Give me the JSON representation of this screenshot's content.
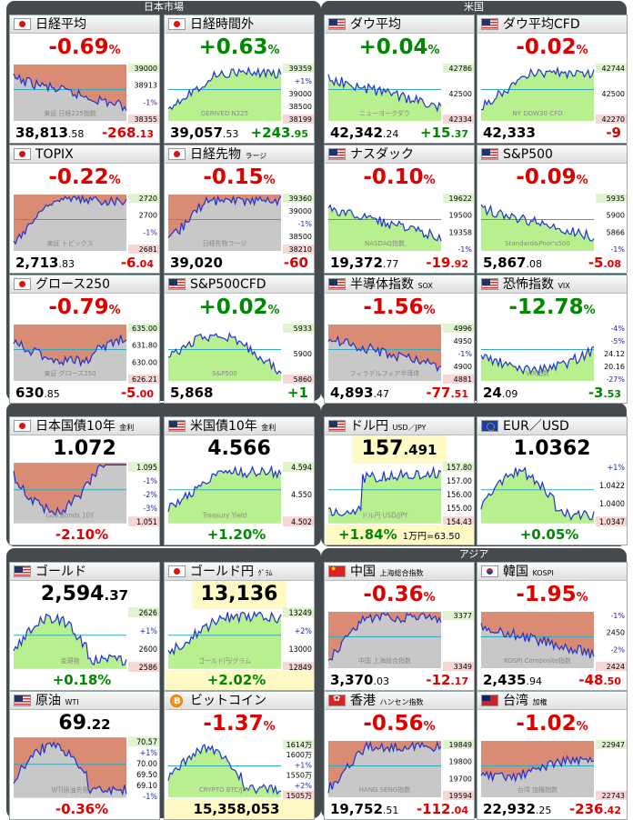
{
  "panels": [
    {
      "id": "jp",
      "title": "日本市場"
    },
    {
      "id": "us",
      "title": "米国"
    },
    {
      "id": "bond",
      "title": ""
    },
    {
      "id": "cmd",
      "title": ""
    },
    {
      "id": "fx",
      "title": ""
    },
    {
      "id": "asia",
      "title": "アジア"
    }
  ],
  "cards": [
    {
      "name": "日経平均",
      "sub": "",
      "flag": "jp",
      "chg": "-0.69",
      "unit": "%",
      "dir": "dn",
      "val": "38,813",
      "frac": ".58",
      "diff": "-268",
      "dfrac": ".13",
      "chart": "down",
      "fill": "red",
      "labels": [
        "39000",
        "38913",
        "-1%",
        "38355"
      ],
      "wm": "東証 日経225指数"
    },
    {
      "name": "日経時間外",
      "sub": "",
      "flag": "jp",
      "chg": "+0.63",
      "unit": "%",
      "dir": "up",
      "val": "39,057",
      "frac": ".53",
      "diff": "+243",
      "dfrac": ".95",
      "chart": "upflat",
      "fill": "green",
      "labels": [
        "39359",
        "+1%",
        "39000",
        "38500",
        "38199"
      ],
      "wm": "DERIVED N225"
    },
    {
      "name": "TOPIX",
      "sub": "",
      "flag": "jp",
      "chg": "-0.22",
      "unit": "%",
      "dir": "dn",
      "val": "2,713",
      "frac": ".83",
      "diff": "-6",
      "dfrac": ".04",
      "chart": "riseflat",
      "fill": "red",
      "labels": [
        "2720",
        "2700",
        "-1%",
        "2681"
      ],
      "wm": "東証 トピックス"
    },
    {
      "name": "日経先物",
      "sub": "ラージ",
      "flag": "jp",
      "chg": "-0.15",
      "unit": "%",
      "dir": "dn",
      "val": "39,020",
      "frac": "",
      "diff": "-60",
      "dfrac": "",
      "chart": "riseflat",
      "fill": "red",
      "labels": [
        "39360",
        "39000",
        "-1%",
        "38500",
        "38210"
      ],
      "wm": "日経先物ラージ"
    },
    {
      "name": "グロース250",
      "sub": "",
      "flag": "jp",
      "chg": "-0.79",
      "unit": "%",
      "dir": "dn",
      "val": "630",
      "frac": ".85",
      "diff": "-5",
      "dfrac": ".00",
      "chart": "dipup",
      "fill": "red",
      "labels": [
        "635.00",
        "631.80",
        "630.00",
        "626.21"
      ],
      "wm": "東証 グロース250"
    },
    {
      "name": "S&P500CFD",
      "sub": "",
      "flag": "us",
      "chg": "+0.02",
      "unit": "%",
      "dir": "up",
      "val": "5,868",
      "frac": "",
      "diff": "+1",
      "dfrac": "",
      "chart": "spiky",
      "fill": "green",
      "labels": [
        "5933",
        "5900",
        "5860"
      ],
      "wm": "S&P500"
    },
    {
      "name": "ダウ平均",
      "sub": "",
      "flag": "us",
      "chg": "+0.04",
      "unit": "%",
      "dir": "up",
      "val": "42,342",
      "frac": ".24",
      "diff": "+15",
      "dfrac": ".37",
      "chart": "down",
      "fill": "green",
      "labels": [
        "42786",
        "42500",
        "42334"
      ],
      "wm": "ニューヨークダウ"
    },
    {
      "name": "ダウ平均CFD",
      "sub": "",
      "flag": "us",
      "chg": "-0.02",
      "unit": "%",
      "dir": "dn",
      "val": "42,333",
      "frac": "",
      "diff": "-9",
      "dfrac": "",
      "chart": "upflat",
      "fill": "green",
      "labels": [
        "42744",
        "42500",
        "42270"
      ],
      "wm": "NY DOW30 CFD"
    },
    {
      "name": "ナスダック",
      "sub": "",
      "flag": "us",
      "chg": "-0.10",
      "unit": "%",
      "dir": "dn",
      "val": "19,372",
      "frac": ".77",
      "diff": "-19",
      "dfrac": ".92",
      "chart": "down",
      "fill": "green",
      "labels": [
        "19622",
        "19500",
        "19358",
        "-1%"
      ],
      "wm": "NASDAQ指数"
    },
    {
      "name": "S&P500",
      "sub": "",
      "flag": "us",
      "chg": "-0.09",
      "unit": "%",
      "dir": "dn",
      "val": "5,867",
      "frac": ".08",
      "diff": "-5",
      "dfrac": ".08",
      "chart": "down",
      "fill": "green",
      "labels": [
        "5935",
        "5900",
        "5866",
        "-1%"
      ],
      "wm": "Standard&Poor's500"
    },
    {
      "name": "半導体指数",
      "sub": "SOX",
      "flag": "us",
      "chg": "-1.56",
      "unit": "%",
      "dir": "dn",
      "val": "4,893",
      "frac": ".47",
      "diff": "-77",
      "dfrac": ".51",
      "chart": "down",
      "fill": "red",
      "labels": [
        "4996",
        "4950",
        "-1%",
        "4900",
        "4881"
      ],
      "wm": "フィラデルフィア半導体"
    },
    {
      "name": "恐怖指数",
      "sub": "VIX",
      "flag": "us",
      "chg": "-12.78",
      "unit": "%",
      "dir": "up",
      "val": "24",
      "frac": ".09",
      "diff": "-3",
      "dfrac": ".53",
      "chart": "vix",
      "fill": "green",
      "labels": [
        "-4%",
        "-5%",
        "24.12",
        "20.16",
        "-27%"
      ],
      "wm": "VIX指数"
    },
    {
      "name": "日本国債10年",
      "sub": "金利",
      "flag": "jp",
      "chg": "1.072",
      "unit": "",
      "dir": "big",
      "val": "",
      "frac": "",
      "diff": "-2.10%",
      "dfrac": "",
      "chart": "vdown",
      "fill": "red",
      "labels": [
        "1.095",
        "-1%",
        "-2%",
        "-3%",
        "1.051"
      ],
      "wm": "Gov.Bonds 10Y",
      "footc": "dn"
    },
    {
      "name": "米国債10年",
      "sub": "金利",
      "flag": "us",
      "chg": "4.566",
      "unit": "",
      "dir": "big",
      "val": "",
      "frac": "",
      "diff": "+1.20%",
      "dfrac": "",
      "chart": "upflat",
      "fill": "green",
      "labels": [
        "4.594",
        "4.550",
        "4.502"
      ],
      "wm": "Treasury Yield",
      "footc": "up"
    },
    {
      "name": "ゴールド",
      "sub": "",
      "flag": "us",
      "chg": "2,594",
      "unit": ".37",
      "dir": "big",
      "val": "",
      "frac": "",
      "diff": "+0.18%",
      "dfrac": "",
      "chart": "humpdown",
      "fill": "green",
      "labels": [
        "2626",
        "+1%",
        "2600",
        "2586"
      ],
      "wm": "金現物",
      "footc": "up"
    },
    {
      "name": "ゴールド円",
      "sub": "ｸﾞﾗﾑ",
      "flag": "jp",
      "chg": "13,136",
      "unit": "",
      "dir": "big hl",
      "val": "",
      "frac": "",
      "diff": "+2.02%",
      "dfrac": "",
      "chart": "upflat",
      "fill": "green",
      "labels": [
        "13249",
        "+2%",
        "13000",
        "12849"
      ],
      "wm": "ゴールド円/グラム",
      "footc": "up",
      "footy": true
    },
    {
      "name": "原油",
      "sub": "WTI",
      "flag": "us",
      "chg": "69",
      "unit": ".22",
      "dir": "big",
      "val": "",
      "frac": "",
      "diff": "-0.36%",
      "dfrac": "",
      "chart": "humpdown",
      "fill": "red",
      "labels": [
        "70.57",
        "+1%",
        "70.00",
        "69.50",
        "69.10",
        "-1%"
      ],
      "wm": "WTI原油先物",
      "footc": "dn"
    },
    {
      "name": "ビットコイン",
      "sub": "",
      "flag": "btc",
      "chg": "-1.37",
      "unit": "%",
      "dir": "dn",
      "val": "",
      "frac": "",
      "diff": "15,358,053",
      "dfrac": "",
      "chart": "humpdown",
      "fill": "green",
      "labels": [
        "1614万",
        "1600万",
        "+1%",
        "1550万",
        "+2%",
        "1505万"
      ],
      "wm": "CRYPTO BTC/JPY",
      "footc": "blk",
      "footy": true
    },
    {
      "name": "ドル円",
      "sub": "USD／JPY",
      "flag": "us",
      "chg": "157",
      "unit": ".491",
      "dir": "big hl",
      "val": "",
      "frac": "",
      "diff": "+1.84%",
      "dfrac": "1万円=63.50",
      "chart": "stepup",
      "fill": "green",
      "labels": [
        "157.80",
        "157.00",
        "156.00",
        "155.00",
        "154.43"
      ],
      "wm": "ドル円 USD/JPY",
      "footc": "up",
      "footy": true
    },
    {
      "name": "EUR／USD",
      "sub": "",
      "flag": "eu",
      "chg": "1.0362",
      "unit": "",
      "dir": "big",
      "val": "",
      "frac": "",
      "diff": "+0.05%",
      "dfrac": "",
      "chart": "humpdown",
      "fill": "green",
      "labels": [
        "+1%",
        "1.0422",
        "1.0400",
        "1.0347"
      ],
      "wm": "",
      "footc": "up"
    },
    {
      "name": "中国",
      "sub": "上海総合指数",
      "flag": "cn",
      "chg": "-0.36",
      "unit": "%",
      "dir": "dn",
      "val": "3,370",
      "frac": ".03",
      "diff": "-12",
      "dfrac": ".17",
      "chart": "riseflat",
      "fill": "red",
      "labels": [
        "3377",
        "3349"
      ],
      "wm": "中国 上海総合指数"
    },
    {
      "name": "韓国",
      "sub": "KOSPI",
      "flag": "kr",
      "chg": "-1.95",
      "unit": "%",
      "dir": "dn",
      "val": "2,435",
      "frac": ".94",
      "diff": "-48",
      "dfrac": ".50",
      "chart": "down",
      "fill": "red",
      "labels": [
        "-1%",
        "2450",
        "-2%",
        "2424"
      ],
      "wm": "KOSPI Composite指数"
    },
    {
      "name": "香港",
      "sub": "ハンセン指数",
      "flag": "hk",
      "chg": "-0.56",
      "unit": "%",
      "dir": "dn",
      "val": "19,752",
      "frac": ".51",
      "diff": "-112",
      "dfrac": ".04",
      "chart": "riseflat",
      "fill": "red",
      "labels": [
        "19849",
        "19800",
        "19700",
        "19594"
      ],
      "wm": "HANG SENG指数"
    },
    {
      "name": "台湾",
      "sub": "加権",
      "flag": "tw",
      "chg": "-1.02",
      "unit": "%",
      "dir": "dn",
      "val": "22,932",
      "frac": ".25",
      "diff": "-236",
      "dfrac": ".42",
      "chart": "flatup",
      "fill": "red",
      "labels": [
        "22947",
        "22743"
      ],
      "wm": "台湾 加権指数"
    }
  ]
}
